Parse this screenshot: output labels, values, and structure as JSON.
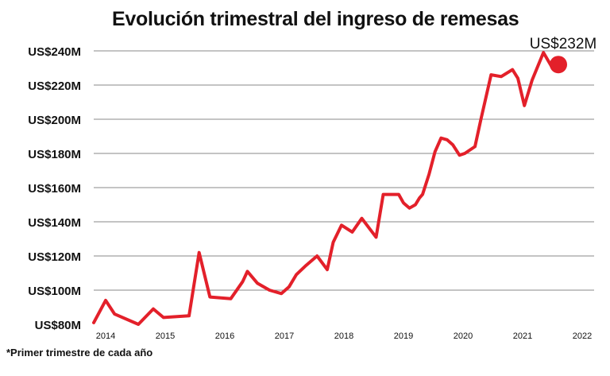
{
  "chart_data": {
    "type": "line",
    "title": "Evolución trimestral del ingreso de remesas",
    "footnote": "*Primer trimestre de cada año",
    "ylim": [
      80,
      240
    ],
    "y_ticks": [
      80,
      100,
      120,
      140,
      160,
      180,
      200,
      220,
      240
    ],
    "y_tick_labels": [
      "US$80M",
      "US$100M",
      "US$120M",
      "US$140M",
      "US$160M",
      "US$180M",
      "US$200M",
      "US$220M",
      "US$240M"
    ],
    "x_ticks": [
      2014,
      2015,
      2016,
      2017,
      2018,
      2019,
      2020,
      2021,
      2022
    ],
    "x_tick_labels": [
      "2014",
      "2015",
      "2016",
      "2017",
      "2018",
      "2019",
      "2020",
      "2021",
      "2022"
    ],
    "xlim": [
      2013.8,
      2022.2
    ],
    "grid": true,
    "color": "#e3202a",
    "series": [
      {
        "name": "Ingreso de remesas",
        "x": [
          2013.8,
          2014.0,
          2014.15,
          2014.55,
          2014.8,
          2014.97,
          2015.4,
          2015.57,
          2015.75,
          2016.1,
          2016.3,
          2016.38,
          2016.55,
          2016.75,
          2016.95,
          2017.08,
          2017.2,
          2017.35,
          2017.55,
          2017.72,
          2017.82,
          2017.96,
          2018.14,
          2018.3,
          2018.54,
          2018.66,
          2018.92,
          2019.0,
          2019.1,
          2019.2,
          2019.27,
          2019.32,
          2019.43,
          2019.53,
          2019.63,
          2019.73,
          2019.83,
          2019.94,
          2020.03,
          2020.2,
          2020.3,
          2020.47,
          2020.64,
          2020.83,
          2020.92,
          2021.03,
          2021.16,
          2021.35,
          2021.5
        ],
        "values": [
          81,
          94,
          86,
          80,
          89,
          84,
          85,
          122,
          96,
          95,
          105,
          111,
          104,
          100,
          98,
          102,
          109,
          114,
          120,
          112,
          128,
          138,
          134,
          142,
          131,
          156,
          156,
          151,
          148,
          150,
          154,
          156,
          168,
          181,
          189,
          188,
          185,
          179,
          180,
          184,
          200,
          226,
          225,
          229,
          224,
          208,
          223,
          239,
          230
        ],
        "end_marker_value": 232,
        "end_marker_x": 2021.6,
        "end_label": "US$232M"
      }
    ]
  }
}
